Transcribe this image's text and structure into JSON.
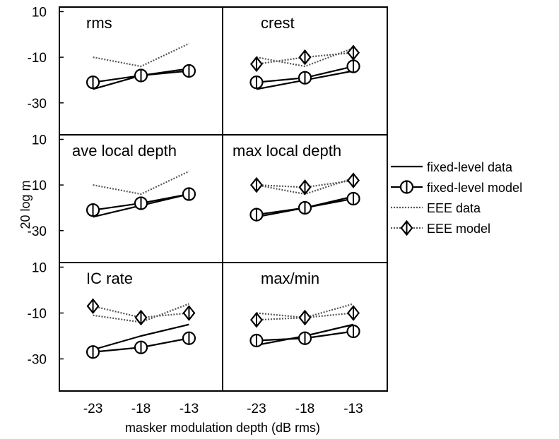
{
  "chart_data": {
    "type": "line",
    "ylabel": "20 log m",
    "xlabel": "masker modulation depth (dB rms)",
    "x_ticks": [
      -23,
      -18,
      -13
    ],
    "y_ticks": [
      10,
      -10,
      -30
    ],
    "ylim": [
      -44,
      12
    ],
    "xlim": [
      -26.5,
      -9.5
    ],
    "grid": false,
    "legend_position": "right",
    "legend": [
      {
        "key": "fixed_data",
        "label": "fixed-level data",
        "line": "solid",
        "marker": "none"
      },
      {
        "key": "fixed_model",
        "label": "fixed-level model",
        "line": "solid",
        "marker": "circle"
      },
      {
        "key": "eee_data",
        "label": "EEE data",
        "line": "dotted",
        "marker": "none"
      },
      {
        "key": "eee_model",
        "label": "EEE model",
        "line": "dotted",
        "marker": "diamond"
      }
    ],
    "panels": [
      {
        "title": "rms",
        "row": 0,
        "col": 0,
        "series": {
          "fixed_data": [
            -24,
            -18,
            -15
          ],
          "fixed_model": [
            -21,
            -18,
            -16
          ],
          "eee_data": [
            -10,
            -14,
            -4
          ]
        }
      },
      {
        "title": "crest",
        "row": 0,
        "col": 1,
        "series": {
          "fixed_data": [
            -24,
            -20,
            -16
          ],
          "fixed_model": [
            -21,
            -19,
            -14
          ],
          "eee_data": [
            -10,
            -14,
            -6
          ],
          "eee_model": [
            -13,
            -10,
            -8
          ]
        }
      },
      {
        "title": "ave local depth",
        "row": 1,
        "col": 0,
        "series": {
          "fixed_data": [
            -24,
            -19,
            -14
          ],
          "fixed_model": [
            -21,
            -18,
            -14
          ],
          "eee_data": [
            -10,
            -14,
            -4
          ]
        }
      },
      {
        "title": "max local depth",
        "row": 1,
        "col": 1,
        "series": {
          "fixed_data": [
            -24,
            -20,
            -15
          ],
          "fixed_model": [
            -23,
            -20,
            -16
          ],
          "eee_data": [
            -10,
            -14,
            -7
          ],
          "eee_model": [
            -10,
            -11,
            -8
          ]
        }
      },
      {
        "title": "IC rate",
        "row": 2,
        "col": 0,
        "series": {
          "fixed_data": [
            -26,
            -20,
            -15
          ],
          "fixed_model": [
            -27,
            -25,
            -21
          ],
          "eee_data": [
            -11,
            -14,
            -6
          ],
          "eee_model": [
            -7,
            -12,
            -10
          ]
        }
      },
      {
        "title": "max/min",
        "row": 2,
        "col": 1,
        "series": {
          "fixed_data": [
            -24,
            -20,
            -15
          ],
          "fixed_model": [
            -22,
            -21,
            -18
          ],
          "eee_data": [
            -10,
            -12,
            -6
          ],
          "eee_model": [
            -13,
            -12,
            -10
          ]
        }
      }
    ]
  }
}
